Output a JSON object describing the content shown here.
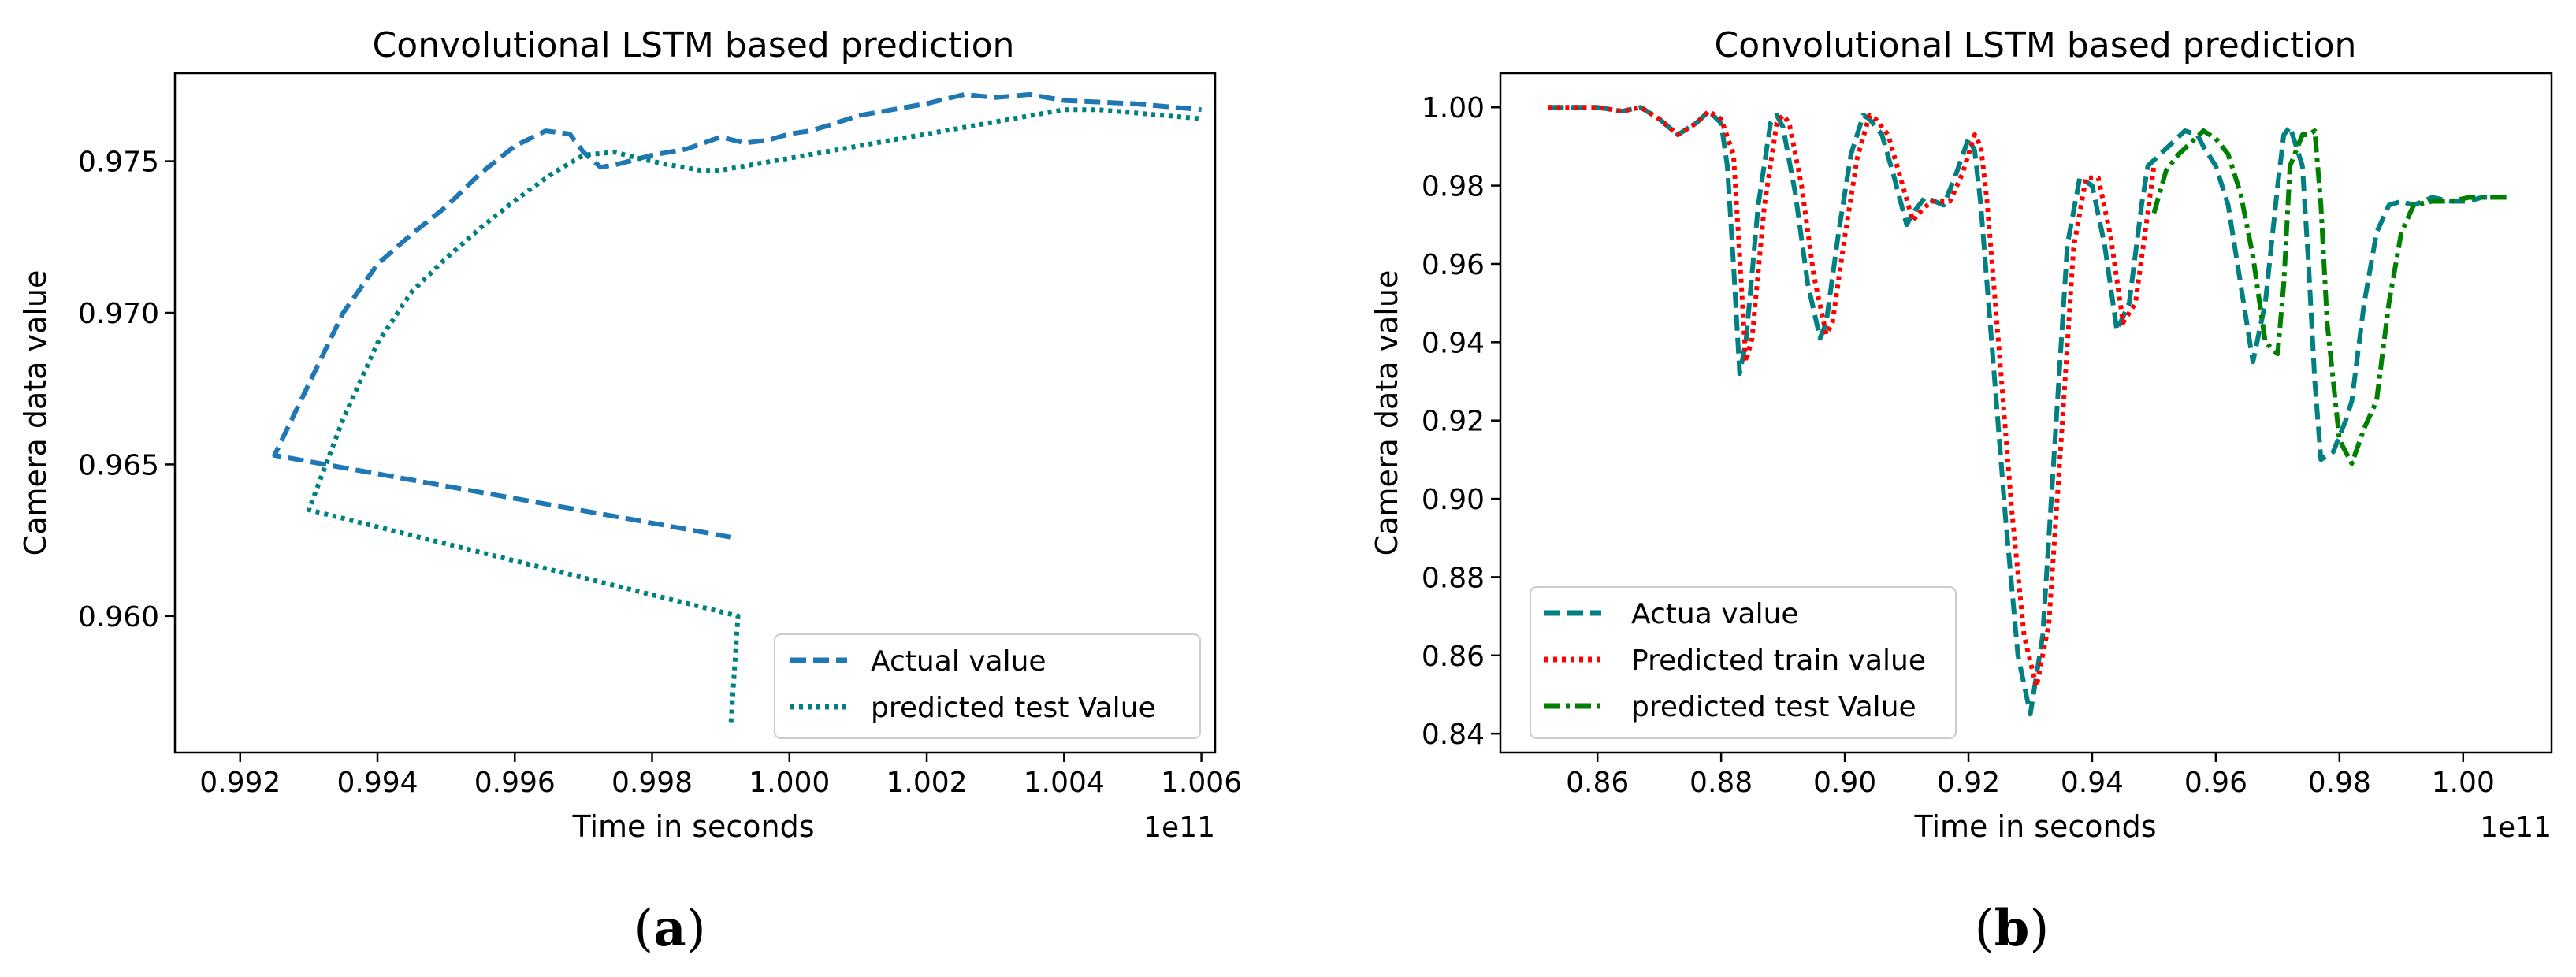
{
  "chart_data": [
    {
      "id": "a",
      "type": "line",
      "title": "Convolutional LSTM based prediction",
      "xlabel": "Time in seconds",
      "ylabel": "Camera data value",
      "x_offset_label": "1e11",
      "caption_letter": "a",
      "xlim": [
        0.99105,
        1.0062
      ],
      "ylim": [
        0.9555,
        0.9779
      ],
      "xticks": [
        0.992,
        0.994,
        0.996,
        0.998,
        1.0,
        1.002,
        1.004,
        1.006
      ],
      "xtick_labels": [
        "0.992",
        "0.994",
        "0.996",
        "0.998",
        "1.000",
        "1.002",
        "1.004",
        "1.006"
      ],
      "yticks": [
        0.96,
        0.965,
        0.97,
        0.975
      ],
      "ytick_labels": [
        "0.960",
        "0.965",
        "0.970",
        "0.975"
      ],
      "legend_position": "lower-right",
      "series": [
        {
          "name": "Actual value",
          "color": "#1f77b4",
          "style": "dashed",
          "x": [
            0.99915,
            0.9925,
            0.9935,
            0.994,
            0.9945,
            0.995,
            0.9955,
            0.996,
            0.99645,
            0.9968,
            0.997,
            0.99725,
            0.9975,
            0.998,
            0.9985,
            0.999,
            0.99935,
            0.9997,
            1.0,
            1.0003,
            1.0006,
            1.001,
            1.0015,
            1.002,
            1.00255,
            1.003,
            1.0035,
            1.004,
            1.005,
            1.006
          ],
          "y": [
            0.9626,
            0.9653,
            0.97,
            0.9716,
            0.9726,
            0.9735,
            0.9746,
            0.9755,
            0.976,
            0.9759,
            0.9753,
            0.9748,
            0.9749,
            0.9752,
            0.9754,
            0.9758,
            0.9756,
            0.9757,
            0.9759,
            0.976,
            0.9762,
            0.9765,
            0.9767,
            0.9769,
            0.9772,
            0.9771,
            0.9772,
            0.977,
            0.9769,
            0.9767
          ]
        },
        {
          "name": "predicted test Value",
          "color": "#008080",
          "style": "dotted",
          "x": [
            0.99915,
            0.99925,
            0.993,
            0.9935,
            0.994,
            0.9945,
            0.995,
            0.9955,
            0.996,
            0.99655,
            0.997,
            0.99745,
            0.9978,
            0.9982,
            0.9987,
            0.999,
            0.9995,
            1.0,
            1.0005,
            1.001,
            1.0015,
            1.002,
            1.0025,
            1.003,
            1.0035,
            1.004,
            1.0045,
            1.005,
            1.0055,
            1.006
          ],
          "y": [
            0.9565,
            0.96,
            0.9635,
            0.9665,
            0.969,
            0.9707,
            0.9718,
            0.9728,
            0.9737,
            0.9746,
            0.9752,
            0.9753,
            0.9751,
            0.9749,
            0.9747,
            0.9747,
            0.9749,
            0.9751,
            0.9753,
            0.9755,
            0.9757,
            0.9759,
            0.9761,
            0.9763,
            0.9765,
            0.9767,
            0.9767,
            0.9766,
            0.9765,
            0.9764
          ]
        }
      ]
    },
    {
      "id": "b",
      "type": "line",
      "title": "Convolutional LSTM based prediction",
      "xlabel": "Time in seconds",
      "ylabel": "Camera data value",
      "x_offset_label": "1e11",
      "caption_letter": "b",
      "xlim": [
        0.8443,
        1.0143
      ],
      "ylim": [
        0.8352,
        1.0087
      ],
      "xticks": [
        0.86,
        0.88,
        0.9,
        0.92,
        0.94,
        0.96,
        0.98,
        1.0
      ],
      "xtick_labels": [
        "0.86",
        "0.88",
        "0.90",
        "0.92",
        "0.94",
        "0.96",
        "0.98",
        "1.00"
      ],
      "yticks": [
        0.84,
        0.86,
        0.88,
        0.9,
        0.92,
        0.94,
        0.96,
        0.98,
        1.0
      ],
      "ytick_labels": [
        "0.84",
        "0.86",
        "0.88",
        "0.90",
        "0.92",
        "0.94",
        "0.96",
        "0.98",
        "1.00"
      ],
      "legend_position": "lower-left",
      "series": [
        {
          "name": "Actua value",
          "color": "#008080",
          "style": "dashed",
          "x": [
            0.852,
            0.856,
            0.86,
            0.864,
            0.867,
            0.87,
            0.873,
            0.876,
            0.878,
            0.88,
            0.881,
            0.882,
            0.883,
            0.884,
            0.886,
            0.888,
            0.889,
            0.89,
            0.892,
            0.894,
            0.896,
            0.897,
            0.899,
            0.901,
            0.903,
            0.904,
            0.906,
            0.908,
            0.91,
            0.911,
            0.913,
            0.916,
            0.918,
            0.92,
            0.921,
            0.922,
            0.924,
            0.926,
            0.928,
            0.93,
            0.932,
            0.934,
            0.936,
            0.938,
            0.94,
            0.942,
            0.944,
            0.946,
            0.948,
            0.949,
            0.951,
            0.953,
            0.955,
            0.957,
            0.958,
            0.96,
            0.962,
            0.964,
            0.966,
            0.968,
            0.97,
            0.971,
            0.972,
            0.974,
            0.975,
            0.976,
            0.977,
            0.979,
            0.981,
            0.982,
            0.984,
            0.986,
            0.988,
            0.99,
            0.992,
            0.995,
            0.998,
            1.001,
            1.003,
            1.007
          ],
          "y": [
            1.0,
            1.0,
            1.0,
            0.999,
            1.0,
            0.997,
            0.993,
            0.996,
            0.999,
            0.996,
            0.985,
            0.96,
            0.932,
            0.94,
            0.975,
            0.996,
            0.998,
            0.995,
            0.978,
            0.955,
            0.941,
            0.945,
            0.968,
            0.988,
            0.998,
            0.997,
            0.993,
            0.982,
            0.97,
            0.973,
            0.977,
            0.975,
            0.983,
            0.992,
            0.989,
            0.975,
            0.935,
            0.895,
            0.86,
            0.845,
            0.865,
            0.915,
            0.965,
            0.982,
            0.98,
            0.965,
            0.943,
            0.95,
            0.975,
            0.985,
            0.988,
            0.991,
            0.994,
            0.993,
            0.99,
            0.985,
            0.975,
            0.955,
            0.935,
            0.95,
            0.98,
            0.993,
            0.995,
            0.985,
            0.96,
            0.93,
            0.91,
            0.912,
            0.92,
            0.925,
            0.95,
            0.968,
            0.975,
            0.976,
            0.975,
            0.977,
            0.976,
            0.976,
            0.977,
            0.977
          ]
        },
        {
          "name": "Predicted train value",
          "color": "#ff0000",
          "style": "dotted",
          "x": [
            0.852,
            0.856,
            0.86,
            0.864,
            0.867,
            0.87,
            0.873,
            0.876,
            0.878,
            0.88,
            0.882,
            0.883,
            0.884,
            0.885,
            0.887,
            0.889,
            0.89,
            0.891,
            0.893,
            0.895,
            0.897,
            0.898,
            0.9,
            0.902,
            0.904,
            0.905,
            0.907,
            0.909,
            0.911,
            0.912,
            0.914,
            0.917,
            0.919,
            0.921,
            0.922,
            0.923,
            0.925,
            0.927,
            0.929,
            0.931,
            0.933,
            0.935,
            0.937,
            0.939,
            0.941,
            0.943,
            0.945,
            0.947,
            0.949,
            0.95
          ],
          "y": [
            1.0,
            1.0,
            1.0,
            0.999,
            1.0,
            0.997,
            0.993,
            0.996,
            0.999,
            0.997,
            0.988,
            0.962,
            0.935,
            0.941,
            0.975,
            0.996,
            0.998,
            0.996,
            0.98,
            0.957,
            0.942,
            0.945,
            0.967,
            0.987,
            0.998,
            0.997,
            0.993,
            0.982,
            0.971,
            0.973,
            0.976,
            0.976,
            0.983,
            0.993,
            0.99,
            0.976,
            0.937,
            0.897,
            0.865,
            0.852,
            0.868,
            0.915,
            0.964,
            0.982,
            0.982,
            0.967,
            0.945,
            0.95,
            0.973,
            0.985
          ]
        },
        {
          "name": "predicted test Value",
          "color": "#008000",
          "style": "dashdot",
          "x": [
            0.95,
            0.952,
            0.954,
            0.956,
            0.958,
            0.96,
            0.962,
            0.964,
            0.966,
            0.968,
            0.97,
            0.971,
            0.972,
            0.974,
            0.975,
            0.976,
            0.977,
            0.978,
            0.98,
            0.982,
            0.984,
            0.986,
            0.988,
            0.99,
            0.992,
            0.995,
            0.998,
            1.001,
            1.003,
            1.007
          ],
          "y": [
            0.973,
            0.984,
            0.988,
            0.991,
            0.994,
            0.992,
            0.988,
            0.978,
            0.962,
            0.94,
            0.937,
            0.955,
            0.985,
            0.993,
            0.993,
            0.994,
            0.975,
            0.945,
            0.915,
            0.909,
            0.918,
            0.925,
            0.95,
            0.968,
            0.975,
            0.976,
            0.976,
            0.977,
            0.977,
            0.977
          ]
        }
      ]
    }
  ]
}
